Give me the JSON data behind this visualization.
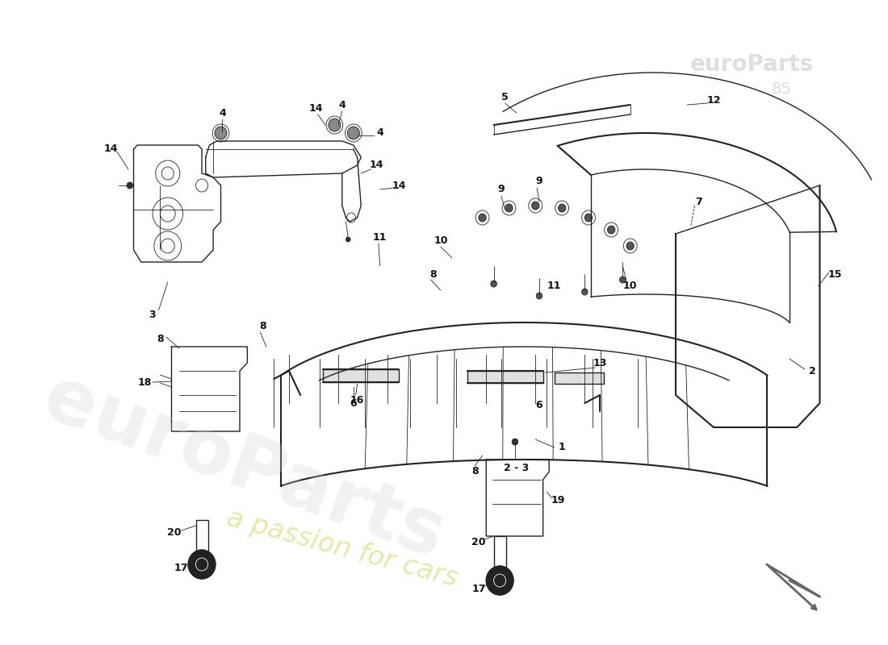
{
  "bg_color": "#ffffff",
  "line_color": "#222222",
  "label_color": "#111111",
  "watermark1": "euroParts",
  "watermark2": "a passion for cars",
  "wm1_color": "#d0d0d0",
  "wm2_color": "#d8d460",
  "logo_color": "#bbbbbb",
  "lw_heavy": 1.5,
  "lw_med": 1.0,
  "lw_thin": 0.6,
  "label_fs": 9
}
